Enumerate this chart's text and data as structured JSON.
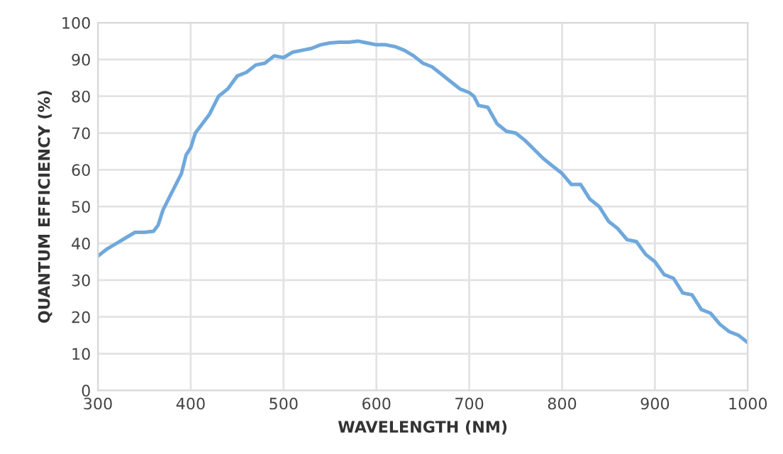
{
  "chart_data": {
    "type": "line",
    "xlabel": "WAVELENGTH (NM)",
    "ylabel": "QUANTUM EFFICIENCY (%)",
    "xlim": [
      300,
      1000
    ],
    "xticks": [
      300,
      400,
      500,
      600,
      700,
      800,
      900,
      1000
    ],
    "ylim": [
      0,
      100
    ],
    "yticks": [
      0,
      10,
      20,
      30,
      40,
      50,
      60,
      70,
      80,
      90,
      100
    ],
    "grid": true,
    "marker": "none",
    "line_style": "solid",
    "series": [
      {
        "color": "#6fa8dc",
        "x": [
          300,
          310,
          320,
          330,
          340,
          350,
          360,
          365,
          370,
          380,
          390,
          395,
          400,
          405,
          420,
          430,
          440,
          450,
          460,
          470,
          480,
          490,
          500,
          510,
          520,
          530,
          540,
          550,
          560,
          570,
          580,
          590,
          600,
          610,
          620,
          630,
          640,
          650,
          660,
          670,
          680,
          690,
          700,
          705,
          710,
          720,
          730,
          740,
          750,
          760,
          770,
          780,
          790,
          800,
          810,
          820,
          830,
          840,
          850,
          860,
          870,
          880,
          890,
          900,
          910,
          920,
          930,
          940,
          950,
          960,
          970,
          980,
          990,
          1000
        ],
        "values": [
          36.5,
          38.5,
          40,
          41.5,
          43,
          43,
          43.3,
          45,
          49,
          54,
          59,
          64,
          66,
          70,
          75,
          80,
          82,
          85.5,
          86.5,
          88.5,
          89,
          91,
          90.5,
          92,
          92.5,
          93,
          94,
          94.5,
          94.7,
          94.7,
          95,
          94.5,
          94,
          94,
          93.5,
          92.5,
          91,
          89,
          88,
          86,
          84,
          82,
          81,
          80,
          77.5,
          77,
          72.5,
          70.5,
          70,
          68,
          65.5,
          63,
          61,
          59,
          56,
          56,
          52,
          50,
          46,
          44,
          41,
          40.5,
          37,
          35,
          31.5,
          30.5,
          26.5,
          26,
          22,
          21,
          18,
          16,
          15,
          13
        ]
      }
    ]
  }
}
